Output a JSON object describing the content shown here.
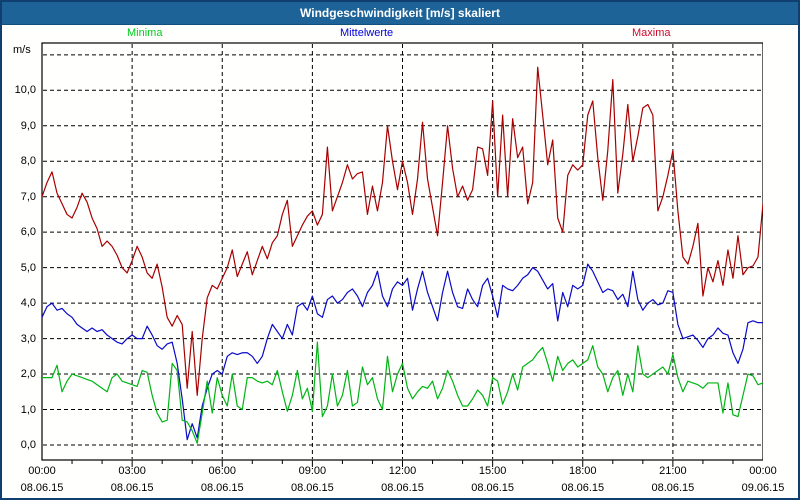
{
  "window": {
    "title": "Windgeschwindigkeit [m/s] skaliert"
  },
  "legend": {
    "items": [
      {
        "label": "Minima",
        "color": "#00cc1d"
      },
      {
        "label": "Mittelwerte",
        "color": "#0000d6"
      },
      {
        "label": "Maxima",
        "color": "#cc0a2e"
      }
    ]
  },
  "chart_data": {
    "type": "line",
    "title": "Windgeschwindigkeit [m/s] skaliert",
    "ylabel": "m/s",
    "xlabel": "",
    "grid": "dashed black, horizontal every 1.0 m/s (0.0-11.0), vertical every 3 hours",
    "legend_position": "top",
    "ylim": [
      -0.42,
      11.33
    ],
    "y_gridline_values": [
      0,
      1,
      2,
      3,
      4,
      5,
      6,
      7,
      8,
      9,
      10,
      11
    ],
    "y_tick_labels": [
      "0,0",
      "1,0",
      "2,0",
      "3,0",
      "4,0",
      "5,0",
      "6,0",
      "7,0",
      "8,0",
      "9,0",
      "10,0"
    ],
    "x_gridline_hours": [
      3,
      6,
      9,
      12,
      15,
      18,
      21
    ],
    "x_range_hours": [
      0,
      24
    ],
    "sample_interval_minutes": 10,
    "x_ticks": [
      {
        "time": "00:00",
        "date": "08.06.15"
      },
      {
        "time": "03:00",
        "date": "08.06.15"
      },
      {
        "time": "06:00",
        "date": "08.06.15"
      },
      {
        "time": "09:00",
        "date": "08.06.15"
      },
      {
        "time": "12:00",
        "date": "08.06.15"
      },
      {
        "time": "15:00",
        "date": "08.06.15"
      },
      {
        "time": "18:00",
        "date": "08.06.15"
      },
      {
        "time": "21:00",
        "date": "08.06.15"
      },
      {
        "time": "00:00",
        "date": "09.06.15"
      }
    ],
    "series": [
      {
        "name": "Maxima",
        "color": "#a80000",
        "values": [
          7.0,
          7.4,
          7.7,
          7.1,
          6.8,
          6.5,
          6.4,
          6.7,
          7.1,
          6.85,
          6.4,
          6.1,
          5.6,
          5.75,
          5.6,
          5.35,
          5.0,
          4.85,
          5.2,
          5.6,
          5.3,
          4.85,
          4.7,
          5.1,
          4.45,
          3.6,
          3.35,
          3.65,
          3.4,
          1.6,
          3.2,
          1.4,
          3.0,
          4.15,
          4.5,
          4.4,
          4.7,
          5.0,
          5.5,
          4.75,
          5.1,
          5.45,
          4.8,
          5.2,
          5.6,
          5.25,
          5.7,
          5.9,
          6.5,
          6.9,
          5.6,
          5.9,
          6.2,
          6.45,
          6.6,
          6.2,
          6.5,
          8.4,
          6.6,
          7.0,
          7.4,
          7.9,
          7.5,
          7.65,
          7.7,
          6.5,
          7.3,
          6.6,
          7.4,
          9.0,
          8.0,
          7.2,
          8.0,
          7.4,
          6.5,
          7.5,
          9.1,
          7.5,
          6.7,
          5.9,
          7.4,
          9.0,
          7.8,
          7.0,
          7.3,
          6.9,
          7.2,
          8.4,
          8.35,
          7.6,
          9.7,
          7.0,
          9.3,
          7.0,
          9.2,
          8.1,
          8.4,
          6.8,
          7.4,
          10.65,
          9.3,
          7.9,
          8.6,
          6.4,
          6.0,
          7.6,
          7.9,
          7.75,
          7.9,
          9.3,
          9.7,
          8.1,
          6.9,
          8.3,
          10.3,
          7.1,
          8.2,
          9.6,
          8.0,
          8.7,
          9.5,
          9.6,
          9.3,
          6.6,
          7.0,
          7.6,
          8.3,
          6.6,
          5.3,
          5.1,
          5.6,
          6.25,
          4.2,
          5.0,
          4.6,
          5.2,
          4.5,
          5.5,
          4.7,
          5.9,
          4.8,
          5.0,
          5.05,
          5.3,
          6.8
        ]
      },
      {
        "name": "Mittelwerte",
        "color": "#0a0ac8",
        "values": [
          3.6,
          3.9,
          4.0,
          3.8,
          3.85,
          3.7,
          3.6,
          3.4,
          3.3,
          3.2,
          3.3,
          3.2,
          3.25,
          3.1,
          3.0,
          2.9,
          2.85,
          3.0,
          3.1,
          3.0,
          3.0,
          3.35,
          3.1,
          2.8,
          2.7,
          2.85,
          2.9,
          2.3,
          1.3,
          0.15,
          0.6,
          0.2,
          1.1,
          1.6,
          2.0,
          2.1,
          2.0,
          2.5,
          2.6,
          2.55,
          2.6,
          2.6,
          2.5,
          2.3,
          2.5,
          3.0,
          3.4,
          3.2,
          3.0,
          3.4,
          3.1,
          3.9,
          4.0,
          3.8,
          4.2,
          3.7,
          3.6,
          4.1,
          4.2,
          4.0,
          4.1,
          4.3,
          4.4,
          4.2,
          3.9,
          4.3,
          4.5,
          4.9,
          4.2,
          3.9,
          4.4,
          4.6,
          4.5,
          4.7,
          3.8,
          4.4,
          4.9,
          4.3,
          3.9,
          3.5,
          4.3,
          4.9,
          4.3,
          3.9,
          3.85,
          4.4,
          4.1,
          3.9,
          4.5,
          4.7,
          4.2,
          3.6,
          4.5,
          4.4,
          4.35,
          4.5,
          4.7,
          4.8,
          5.0,
          4.9,
          4.65,
          4.4,
          4.55,
          3.5,
          4.3,
          3.9,
          4.5,
          4.4,
          4.5,
          5.1,
          4.9,
          4.6,
          4.3,
          4.4,
          4.35,
          4.1,
          4.25,
          3.9,
          4.9,
          4.1,
          3.8,
          4.0,
          4.1,
          3.95,
          4.0,
          4.35,
          4.3,
          3.4,
          3.0,
          3.05,
          3.1,
          2.95,
          2.75,
          3.0,
          3.1,
          3.3,
          3.15,
          3.1,
          2.6,
          2.3,
          2.7,
          3.45,
          3.5,
          3.45,
          3.45
        ]
      },
      {
        "name": "Minima",
        "color": "#00b414",
        "values": [
          1.9,
          1.9,
          1.9,
          2.25,
          1.5,
          1.8,
          2.0,
          1.95,
          1.9,
          1.85,
          1.8,
          1.7,
          1.6,
          1.5,
          1.9,
          2.0,
          1.8,
          1.75,
          1.7,
          1.65,
          2.1,
          2.05,
          1.4,
          0.9,
          0.65,
          0.7,
          2.3,
          2.1,
          0.7,
          0.65,
          0.4,
          0.05,
          0.9,
          1.8,
          0.9,
          1.9,
          1.4,
          1.1,
          2.0,
          1.1,
          1.0,
          1.9,
          1.9,
          1.8,
          1.75,
          1.8,
          1.7,
          2.1,
          1.5,
          0.95,
          1.4,
          2.1,
          1.3,
          1.6,
          0.95,
          2.9,
          0.8,
          1.1,
          2.0,
          1.1,
          1.4,
          2.1,
          1.1,
          1.2,
          2.2,
          1.7,
          1.9,
          1.3,
          1.0,
          2.5,
          1.5,
          2.0,
          2.3,
          1.6,
          1.3,
          1.5,
          1.65,
          1.6,
          1.8,
          1.3,
          1.6,
          2.1,
          1.8,
          1.4,
          1.1,
          1.1,
          1.3,
          1.55,
          1.4,
          1.1,
          1.9,
          1.8,
          1.15,
          1.5,
          2.0,
          1.55,
          2.2,
          2.3,
          2.4,
          2.6,
          2.75,
          2.3,
          1.8,
          2.5,
          2.1,
          2.3,
          2.4,
          2.2,
          2.3,
          2.4,
          2.8,
          2.2,
          2.0,
          1.5,
          1.9,
          2.1,
          1.4,
          2.0,
          1.5,
          2.8,
          2.0,
          1.9,
          2.0,
          2.1,
          2.2,
          2.0,
          2.55,
          1.9,
          1.5,
          1.8,
          1.75,
          1.7,
          1.6,
          1.75,
          1.75,
          1.75,
          0.9,
          1.75,
          0.85,
          0.8,
          1.4,
          2.0,
          1.95,
          1.7,
          1.75
        ]
      }
    ]
  }
}
